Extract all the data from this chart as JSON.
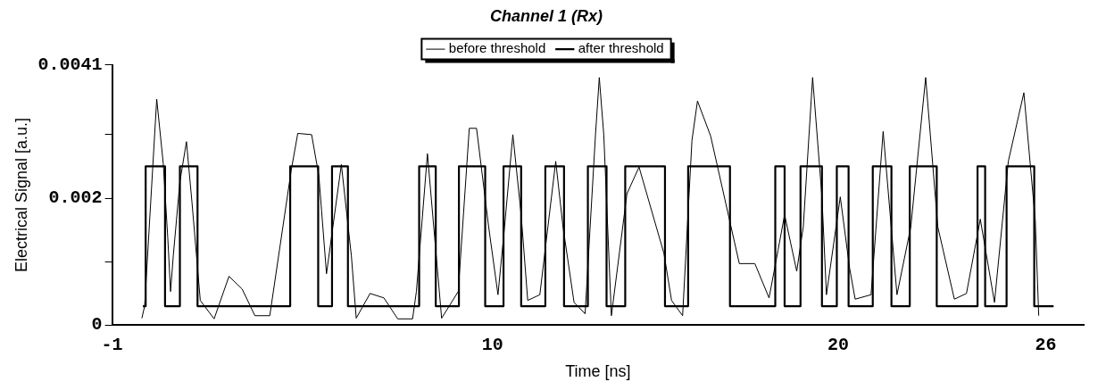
{
  "chart_data": {
    "type": "line",
    "title": "Channel 1 (Rx)",
    "xlabel": "Time [ns]",
    "ylabel": "Electrical Signal [a.u.]",
    "xlim": [
      -1,
      27.1
    ],
    "xticks": [
      -1,
      10,
      20,
      26
    ],
    "ylim": [
      0,
      0.0041
    ],
    "yticks": [
      0,
      {
        "value": 0.001,
        "label": null
      },
      0.002,
      {
        "value": 0.003,
        "label": null
      },
      0.0041
    ],
    "grid": false,
    "legend": "top",
    "marker": "none",
    "series": [
      {
        "name": "before threshold",
        "type": "line",
        "color": "#000000",
        "x": [
          -0.14,
          -0.06,
          0.29,
          0.48,
          0.61,
          0.69,
          0.77,
          0.96,
          1.15,
          1.31,
          1.55,
          1.95,
          2.38,
          2.76,
          3.13,
          3.56,
          4.18,
          4.37,
          4.77,
          4.98,
          5.2,
          5.63,
          5.92,
          6.06,
          6.46,
          6.86,
          7.26,
          7.69,
          7.8,
          8.12,
          8.53,
          9.01,
          9.33,
          9.54,
          9.89,
          10.16,
          10.35,
          10.59,
          10.83,
          11.02,
          11.37,
          11.83,
          12.04,
          12.36,
          12.68,
          12.98,
          13.09,
          13.22,
          13.44,
          13.89,
          14.24,
          14.96,
          15.18,
          15.5,
          15.77,
          15.93,
          16.31,
          17.14,
          17.59,
          18.0,
          18.26,
          18.45,
          18.8,
          18.99,
          19.26,
          19.53,
          19.66,
          20.06,
          20.33,
          20.49,
          20.95,
          21.3,
          21.7,
          22.1,
          22.53,
          22.88,
          23.36,
          23.71,
          24.11,
          24.52,
          24.92,
          25.37,
          25.7,
          25.8
        ],
        "values": [
          0.00011,
          0.0003,
          0.00356,
          0.00254,
          0.00137,
          0.00053,
          0.0011,
          0.00226,
          0.00289,
          0.00193,
          0.00039,
          0.0001,
          0.00077,
          0.00057,
          0.00015,
          0.00015,
          0.00244,
          0.00302,
          0.003,
          0.00235,
          0.00081,
          0.00253,
          0.00109,
          0.00011,
          0.0005,
          0.00043,
          0.0001,
          0.0001,
          0.00053,
          0.0027,
          0.00011,
          0.00053,
          0.0031,
          0.0031,
          0.00155,
          0.00048,
          0.00155,
          0.003,
          0.00174,
          0.00039,
          0.00048,
          0.00258,
          0.00155,
          0.00036,
          0.00018,
          0.003,
          0.0039,
          0.003,
          0.00015,
          0.00207,
          0.00249,
          0.00113,
          0.00039,
          0.00015,
          0.00291,
          0.00353,
          0.00298,
          0.00097,
          0.00097,
          0.00043,
          0.00118,
          0.00174,
          0.00085,
          0.00155,
          0.0039,
          0.00202,
          0.00048,
          0.00202,
          0.0009,
          0.00041,
          0.00048,
          0.00305,
          0.00048,
          0.00155,
          0.0039,
          0.00155,
          0.00041,
          0.0005,
          0.00167,
          0.00036,
          0.00258,
          0.00366,
          0.00165,
          0.00015
        ]
      },
      {
        "name": "after threshold",
        "type": "step",
        "color": "#000000",
        "x": [
          -0.11,
          -0.03,
          0.53,
          0.96,
          1.47,
          4.15,
          4.96,
          5.36,
          5.82,
          7.88,
          8.36,
          9.03,
          9.79,
          10.32,
          10.83,
          11.53,
          12.07,
          12.76,
          13.3,
          13.84,
          14.99,
          15.66,
          16.87,
          18.18,
          18.45,
          18.91,
          19.53,
          19.96,
          20.3,
          21.0,
          21.54,
          22.07,
          22.85,
          24.03,
          24.25,
          24.87,
          25.67,
          26.23
        ],
        "values": [
          0.0003,
          0.0025,
          0.0003,
          0.0025,
          0.0003,
          0.0025,
          0.0003,
          0.0025,
          0.0003,
          0.0025,
          0.0003,
          0.0025,
          0.0003,
          0.0025,
          0.0003,
          0.0025,
          0.0003,
          0.0025,
          0.0003,
          0.0025,
          0.0003,
          0.0025,
          0.0003,
          0.0025,
          0.0003,
          0.0025,
          0.0003,
          0.0025,
          0.0003,
          0.0025,
          0.0003,
          0.0025,
          0.0003,
          0.0025,
          0.0003,
          0.0025,
          0.0003,
          0.0003
        ]
      }
    ]
  }
}
